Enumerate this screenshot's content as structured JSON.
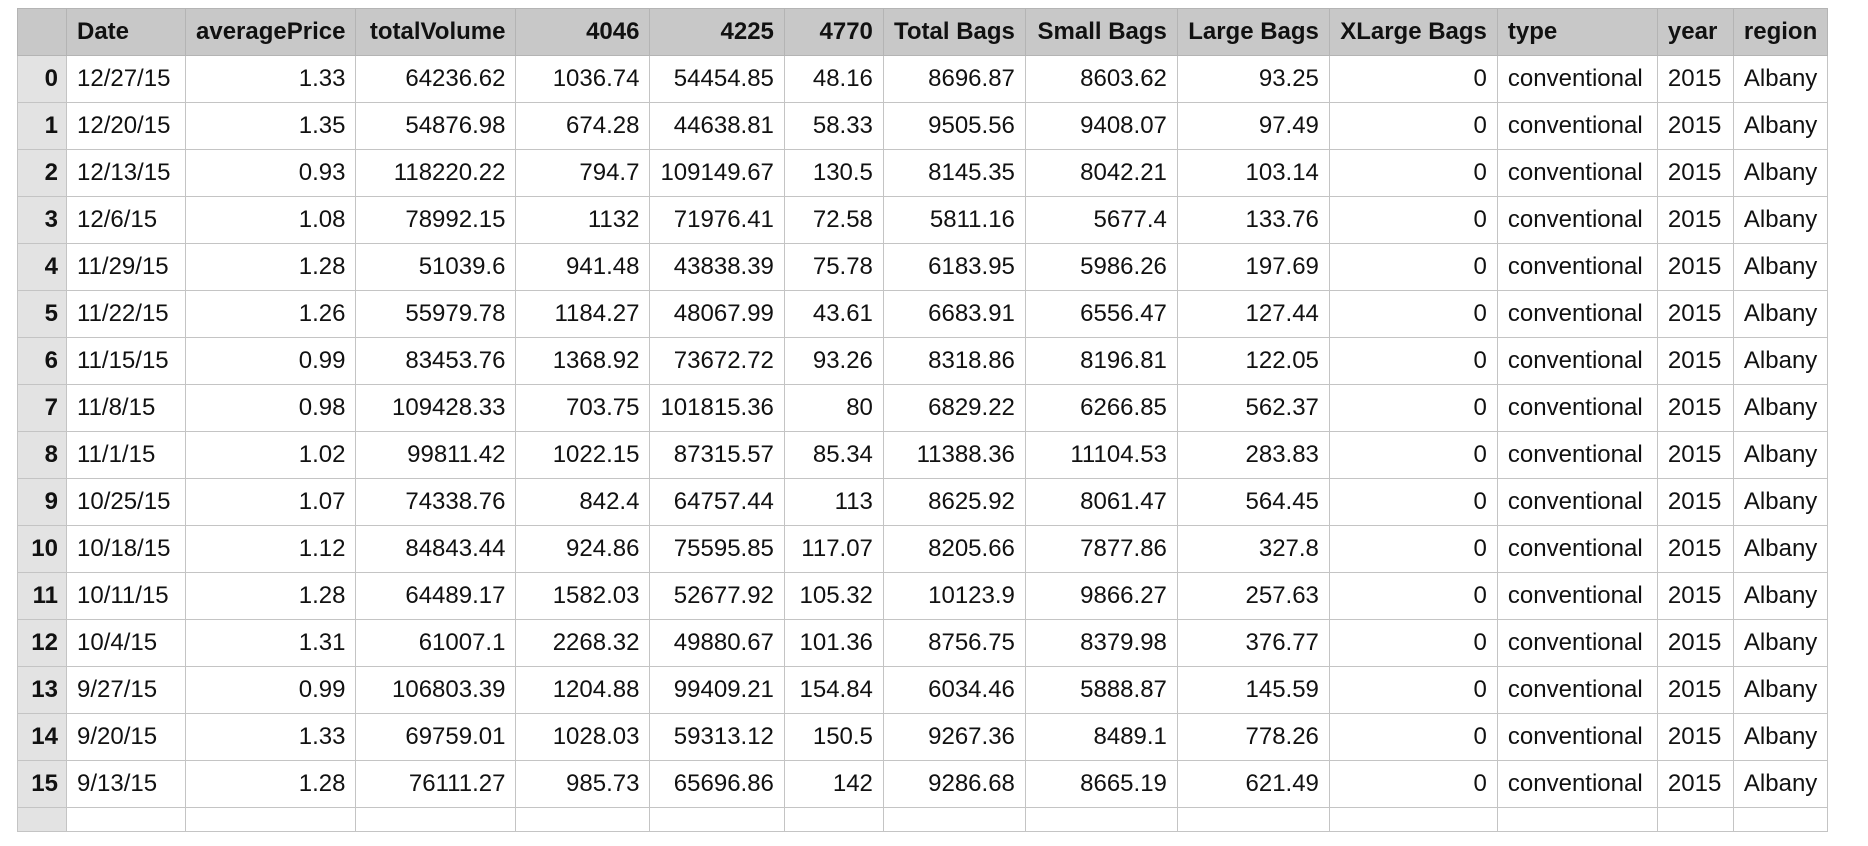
{
  "table": {
    "columns": [
      {
        "label": "Date",
        "align": "l"
      },
      {
        "label": "averagePrice",
        "align": "r"
      },
      {
        "label": "totalVolume",
        "align": "r"
      },
      {
        "label": "4046",
        "align": "r"
      },
      {
        "label": "4225",
        "align": "r"
      },
      {
        "label": "4770",
        "align": "r"
      },
      {
        "label": "Total Bags",
        "align": "r"
      },
      {
        "label": "Small Bags",
        "align": "r"
      },
      {
        "label": "Large Bags",
        "align": "r"
      },
      {
        "label": "XLarge Bags",
        "align": "r"
      },
      {
        "label": "type",
        "align": "l"
      },
      {
        "label": "year",
        "align": "l"
      },
      {
        "label": "region",
        "align": "l"
      }
    ],
    "rows": [
      {
        "index": "0",
        "cells": [
          "12/27/15",
          "1.33",
          "64236.62",
          "1036.74",
          "54454.85",
          "48.16",
          "8696.87",
          "8603.62",
          "93.25",
          "0",
          "conventional",
          "2015",
          "Albany"
        ]
      },
      {
        "index": "1",
        "cells": [
          "12/20/15",
          "1.35",
          "54876.98",
          "674.28",
          "44638.81",
          "58.33",
          "9505.56",
          "9408.07",
          "97.49",
          "0",
          "conventional",
          "2015",
          "Albany"
        ]
      },
      {
        "index": "2",
        "cells": [
          "12/13/15",
          "0.93",
          "118220.22",
          "794.7",
          "109149.67",
          "130.5",
          "8145.35",
          "8042.21",
          "103.14",
          "0",
          "conventional",
          "2015",
          "Albany"
        ]
      },
      {
        "index": "3",
        "cells": [
          "12/6/15",
          "1.08",
          "78992.15",
          "1132",
          "71976.41",
          "72.58",
          "5811.16",
          "5677.4",
          "133.76",
          "0",
          "conventional",
          "2015",
          "Albany"
        ]
      },
      {
        "index": "4",
        "cells": [
          "11/29/15",
          "1.28",
          "51039.6",
          "941.48",
          "43838.39",
          "75.78",
          "6183.95",
          "5986.26",
          "197.69",
          "0",
          "conventional",
          "2015",
          "Albany"
        ]
      },
      {
        "index": "5",
        "cells": [
          "11/22/15",
          "1.26",
          "55979.78",
          "1184.27",
          "48067.99",
          "43.61",
          "6683.91",
          "6556.47",
          "127.44",
          "0",
          "conventional",
          "2015",
          "Albany"
        ]
      },
      {
        "index": "6",
        "cells": [
          "11/15/15",
          "0.99",
          "83453.76",
          "1368.92",
          "73672.72",
          "93.26",
          "8318.86",
          "8196.81",
          "122.05",
          "0",
          "conventional",
          "2015",
          "Albany"
        ]
      },
      {
        "index": "7",
        "cells": [
          "11/8/15",
          "0.98",
          "109428.33",
          "703.75",
          "101815.36",
          "80",
          "6829.22",
          "6266.85",
          "562.37",
          "0",
          "conventional",
          "2015",
          "Albany"
        ]
      },
      {
        "index": "8",
        "cells": [
          "11/1/15",
          "1.02",
          "99811.42",
          "1022.15",
          "87315.57",
          "85.34",
          "11388.36",
          "11104.53",
          "283.83",
          "0",
          "conventional",
          "2015",
          "Albany"
        ]
      },
      {
        "index": "9",
        "cells": [
          "10/25/15",
          "1.07",
          "74338.76",
          "842.4",
          "64757.44",
          "113",
          "8625.92",
          "8061.47",
          "564.45",
          "0",
          "conventional",
          "2015",
          "Albany"
        ]
      },
      {
        "index": "10",
        "cells": [
          "10/18/15",
          "1.12",
          "84843.44",
          "924.86",
          "75595.85",
          "117.07",
          "8205.66",
          "7877.86",
          "327.8",
          "0",
          "conventional",
          "2015",
          "Albany"
        ]
      },
      {
        "index": "11",
        "cells": [
          "10/11/15",
          "1.28",
          "64489.17",
          "1582.03",
          "52677.92",
          "105.32",
          "10123.9",
          "9866.27",
          "257.63",
          "0",
          "conventional",
          "2015",
          "Albany"
        ]
      },
      {
        "index": "12",
        "cells": [
          "10/4/15",
          "1.31",
          "61007.1",
          "2268.32",
          "49880.67",
          "101.36",
          "8756.75",
          "8379.98",
          "376.77",
          "0",
          "conventional",
          "2015",
          "Albany"
        ]
      },
      {
        "index": "13",
        "cells": [
          "9/27/15",
          "0.99",
          "106803.39",
          "1204.88",
          "99409.21",
          "154.84",
          "6034.46",
          "5888.87",
          "145.59",
          "0",
          "conventional",
          "2015",
          "Albany"
        ]
      },
      {
        "index": "14",
        "cells": [
          "9/20/15",
          "1.33",
          "69759.01",
          "1028.03",
          "59313.12",
          "150.5",
          "9267.36",
          "8489.1",
          "778.26",
          "0",
          "conventional",
          "2015",
          "Albany"
        ]
      },
      {
        "index": "15",
        "cells": [
          "9/13/15",
          "1.28",
          "76111.27",
          "985.73",
          "65696.86",
          "142",
          "9286.68",
          "8665.19",
          "621.49",
          "0",
          "conventional",
          "2015",
          "Albany"
        ]
      }
    ]
  },
  "colors": {
    "header_bg": "#c8c8c8",
    "index_bg": "#e3e3e3",
    "grid": "#c4c4c4"
  }
}
